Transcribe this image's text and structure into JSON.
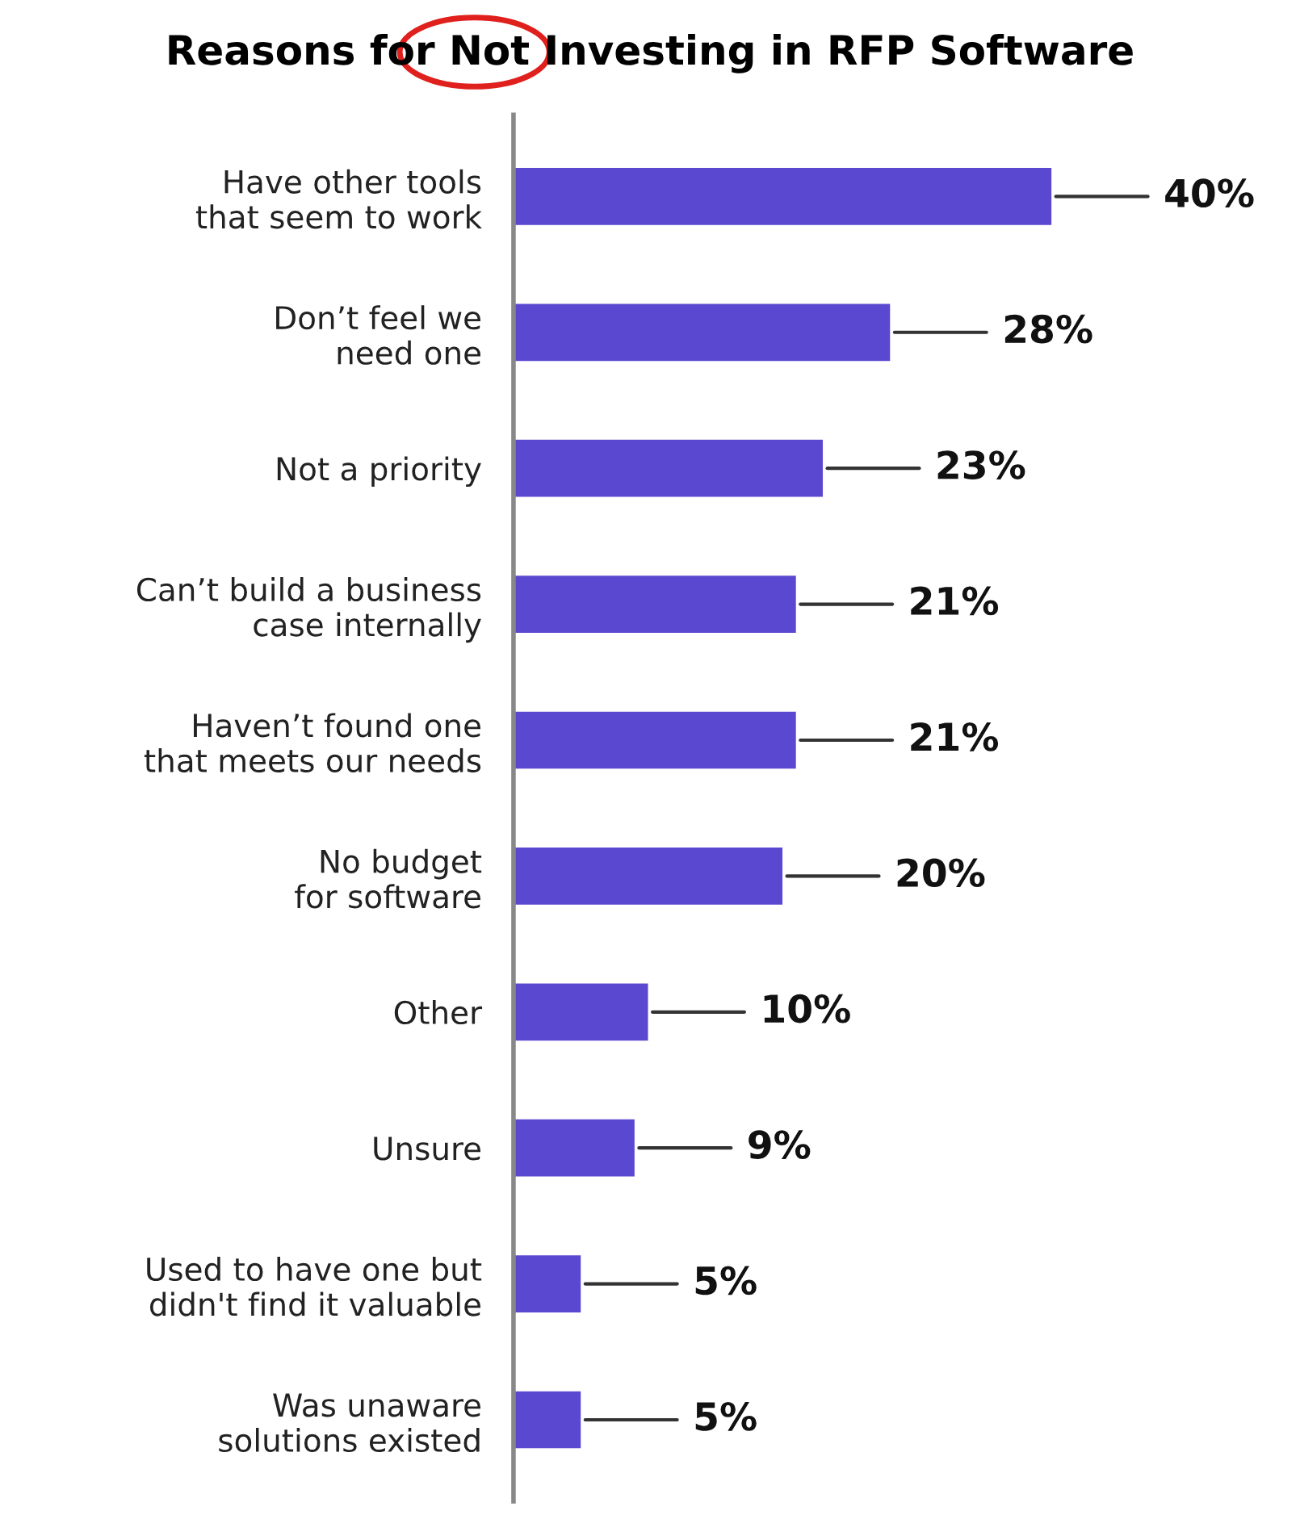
{
  "chart_data": {
    "type": "bar",
    "orientation": "horizontal",
    "title": "Reasons for Not Investing in RFP Software",
    "categories": [
      "Have other tools\nthat seem to work",
      "Don’t feel we\nneed one",
      "Not a priority",
      "Can’t build a business\ncase internally",
      "Haven’t found one\nthat meets our needs",
      "No budget\nfor software",
      "Other",
      "Unsure",
      "Used to have one but\ndidn't find it valuable",
      "Was unaware\nsolutions existed"
    ],
    "values": [
      40,
      28,
      23,
      21,
      21,
      20,
      10,
      9,
      5,
      5
    ],
    "value_labels": [
      "40%",
      "28%",
      "23%",
      "21%",
      "21%",
      "20%",
      "10%",
      "9%",
      "5%",
      "5%"
    ],
    "color": "#5a48d0",
    "tick_labels": "y",
    "grid": false
  }
}
